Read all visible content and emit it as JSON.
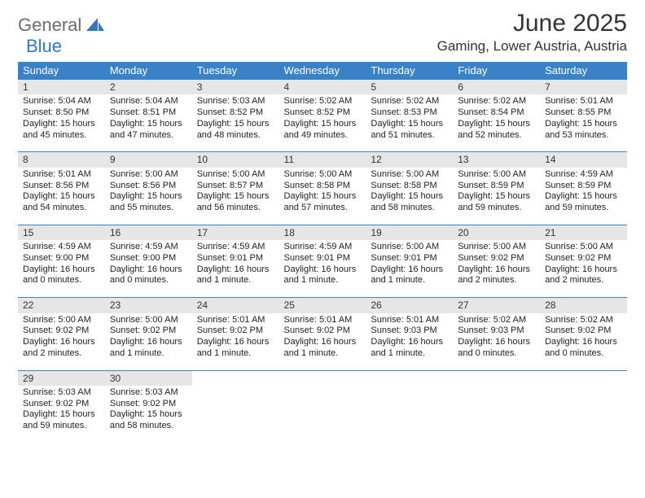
{
  "logo": {
    "text1": "General",
    "text2": "Blue"
  },
  "title": "June 2025",
  "location": "Gaming, Lower Austria, Austria",
  "colors": {
    "header_bg": "#3a82c8",
    "header_text": "#ffffff",
    "daynum_bg": "#e6e6e6",
    "rule": "#3a82c8",
    "logo_gray": "#6b6b6b",
    "logo_blue": "#2f78c4"
  },
  "weekdays": [
    "Sunday",
    "Monday",
    "Tuesday",
    "Wednesday",
    "Thursday",
    "Friday",
    "Saturday"
  ],
  "weeks": [
    [
      {
        "num": "1",
        "sunrise": "Sunrise: 5:04 AM",
        "sunset": "Sunset: 8:50 PM",
        "day1": "Daylight: 15 hours",
        "day2": "and 45 minutes."
      },
      {
        "num": "2",
        "sunrise": "Sunrise: 5:04 AM",
        "sunset": "Sunset: 8:51 PM",
        "day1": "Daylight: 15 hours",
        "day2": "and 47 minutes."
      },
      {
        "num": "3",
        "sunrise": "Sunrise: 5:03 AM",
        "sunset": "Sunset: 8:52 PM",
        "day1": "Daylight: 15 hours",
        "day2": "and 48 minutes."
      },
      {
        "num": "4",
        "sunrise": "Sunrise: 5:02 AM",
        "sunset": "Sunset: 8:52 PM",
        "day1": "Daylight: 15 hours",
        "day2": "and 49 minutes."
      },
      {
        "num": "5",
        "sunrise": "Sunrise: 5:02 AM",
        "sunset": "Sunset: 8:53 PM",
        "day1": "Daylight: 15 hours",
        "day2": "and 51 minutes."
      },
      {
        "num": "6",
        "sunrise": "Sunrise: 5:02 AM",
        "sunset": "Sunset: 8:54 PM",
        "day1": "Daylight: 15 hours",
        "day2": "and 52 minutes."
      },
      {
        "num": "7",
        "sunrise": "Sunrise: 5:01 AM",
        "sunset": "Sunset: 8:55 PM",
        "day1": "Daylight: 15 hours",
        "day2": "and 53 minutes."
      }
    ],
    [
      {
        "num": "8",
        "sunrise": "Sunrise: 5:01 AM",
        "sunset": "Sunset: 8:56 PM",
        "day1": "Daylight: 15 hours",
        "day2": "and 54 minutes."
      },
      {
        "num": "9",
        "sunrise": "Sunrise: 5:00 AM",
        "sunset": "Sunset: 8:56 PM",
        "day1": "Daylight: 15 hours",
        "day2": "and 55 minutes."
      },
      {
        "num": "10",
        "sunrise": "Sunrise: 5:00 AM",
        "sunset": "Sunset: 8:57 PM",
        "day1": "Daylight: 15 hours",
        "day2": "and 56 minutes."
      },
      {
        "num": "11",
        "sunrise": "Sunrise: 5:00 AM",
        "sunset": "Sunset: 8:58 PM",
        "day1": "Daylight: 15 hours",
        "day2": "and 57 minutes."
      },
      {
        "num": "12",
        "sunrise": "Sunrise: 5:00 AM",
        "sunset": "Sunset: 8:58 PM",
        "day1": "Daylight: 15 hours",
        "day2": "and 58 minutes."
      },
      {
        "num": "13",
        "sunrise": "Sunrise: 5:00 AM",
        "sunset": "Sunset: 8:59 PM",
        "day1": "Daylight: 15 hours",
        "day2": "and 59 minutes."
      },
      {
        "num": "14",
        "sunrise": "Sunrise: 4:59 AM",
        "sunset": "Sunset: 8:59 PM",
        "day1": "Daylight: 15 hours",
        "day2": "and 59 minutes."
      }
    ],
    [
      {
        "num": "15",
        "sunrise": "Sunrise: 4:59 AM",
        "sunset": "Sunset: 9:00 PM",
        "day1": "Daylight: 16 hours",
        "day2": "and 0 minutes."
      },
      {
        "num": "16",
        "sunrise": "Sunrise: 4:59 AM",
        "sunset": "Sunset: 9:00 PM",
        "day1": "Daylight: 16 hours",
        "day2": "and 0 minutes."
      },
      {
        "num": "17",
        "sunrise": "Sunrise: 4:59 AM",
        "sunset": "Sunset: 9:01 PM",
        "day1": "Daylight: 16 hours",
        "day2": "and 1 minute."
      },
      {
        "num": "18",
        "sunrise": "Sunrise: 4:59 AM",
        "sunset": "Sunset: 9:01 PM",
        "day1": "Daylight: 16 hours",
        "day2": "and 1 minute."
      },
      {
        "num": "19",
        "sunrise": "Sunrise: 5:00 AM",
        "sunset": "Sunset: 9:01 PM",
        "day1": "Daylight: 16 hours",
        "day2": "and 1 minute."
      },
      {
        "num": "20",
        "sunrise": "Sunrise: 5:00 AM",
        "sunset": "Sunset: 9:02 PM",
        "day1": "Daylight: 16 hours",
        "day2": "and 2 minutes."
      },
      {
        "num": "21",
        "sunrise": "Sunrise: 5:00 AM",
        "sunset": "Sunset: 9:02 PM",
        "day1": "Daylight: 16 hours",
        "day2": "and 2 minutes."
      }
    ],
    [
      {
        "num": "22",
        "sunrise": "Sunrise: 5:00 AM",
        "sunset": "Sunset: 9:02 PM",
        "day1": "Daylight: 16 hours",
        "day2": "and 2 minutes."
      },
      {
        "num": "23",
        "sunrise": "Sunrise: 5:00 AM",
        "sunset": "Sunset: 9:02 PM",
        "day1": "Daylight: 16 hours",
        "day2": "and 1 minute."
      },
      {
        "num": "24",
        "sunrise": "Sunrise: 5:01 AM",
        "sunset": "Sunset: 9:02 PM",
        "day1": "Daylight: 16 hours",
        "day2": "and 1 minute."
      },
      {
        "num": "25",
        "sunrise": "Sunrise: 5:01 AM",
        "sunset": "Sunset: 9:02 PM",
        "day1": "Daylight: 16 hours",
        "day2": "and 1 minute."
      },
      {
        "num": "26",
        "sunrise": "Sunrise: 5:01 AM",
        "sunset": "Sunset: 9:03 PM",
        "day1": "Daylight: 16 hours",
        "day2": "and 1 minute."
      },
      {
        "num": "27",
        "sunrise": "Sunrise: 5:02 AM",
        "sunset": "Sunset: 9:03 PM",
        "day1": "Daylight: 16 hours",
        "day2": "and 0 minutes."
      },
      {
        "num": "28",
        "sunrise": "Sunrise: 5:02 AM",
        "sunset": "Sunset: 9:02 PM",
        "day1": "Daylight: 16 hours",
        "day2": "and 0 minutes."
      }
    ],
    [
      {
        "num": "29",
        "sunrise": "Sunrise: 5:03 AM",
        "sunset": "Sunset: 9:02 PM",
        "day1": "Daylight: 15 hours",
        "day2": "and 59 minutes."
      },
      {
        "num": "30",
        "sunrise": "Sunrise: 5:03 AM",
        "sunset": "Sunset: 9:02 PM",
        "day1": "Daylight: 15 hours",
        "day2": "and 58 minutes."
      },
      null,
      null,
      null,
      null,
      null
    ]
  ]
}
